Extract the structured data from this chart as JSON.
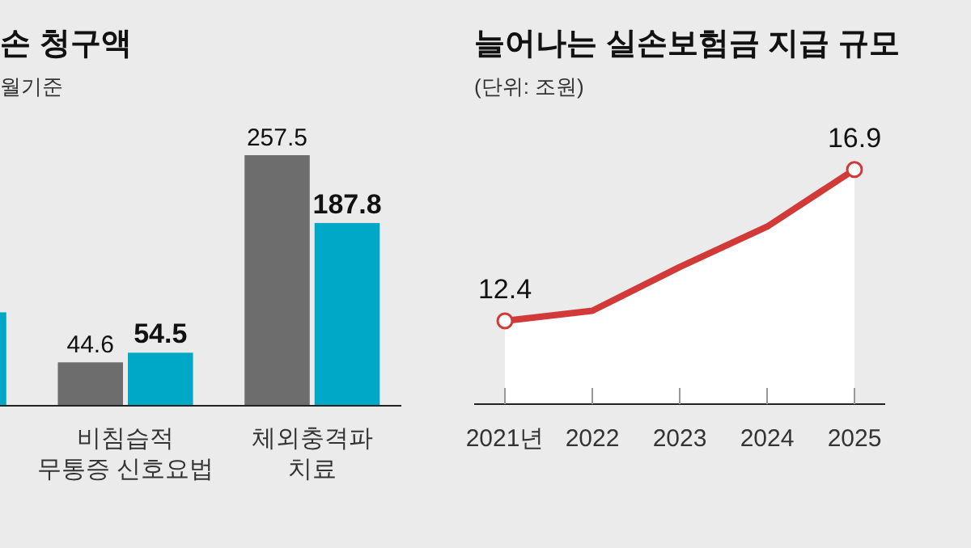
{
  "chart_data": [
    {
      "type": "bar",
      "title": "손 청구액",
      "subtitle": "월기준",
      "categories": [
        null,
        "비침습적\n무통증 신호요법",
        "체외충격파\n치료"
      ],
      "series": [
        {
          "color": "#6d6d6d",
          "values": [
            null,
            44.6,
            257.5
          ],
          "value_labels": [
            null,
            "44.6",
            "257.5"
          ]
        },
        {
          "color": "#00a8c8",
          "values": [
            96,
            54.5,
            187.8
          ],
          "value_labels": [
            null,
            "54.5",
            "187.8"
          ]
        }
      ]
    },
    {
      "type": "area",
      "title": "늘어나는 실손보험금 지급 규모",
      "subtitle": "(단위: 조원)",
      "categories": [
        "2021년",
        "2022",
        "2023",
        "2024",
        "2025"
      ],
      "series": [
        {
          "color": "#d23a3a",
          "values": [
            12.4,
            12.7,
            14.0,
            15.2,
            16.9
          ],
          "value_labels": [
            "12.4",
            null,
            null,
            null,
            "16.9"
          ]
        }
      ]
    }
  ]
}
